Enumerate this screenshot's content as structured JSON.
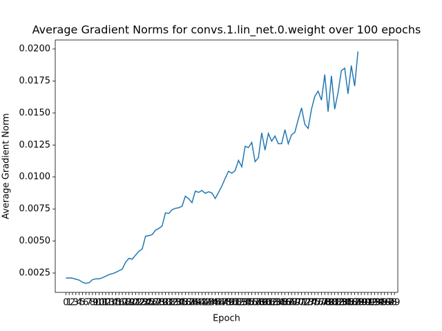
{
  "chart_data": {
    "type": "line",
    "title": "Average Gradient Norms for convs.1.lin_net.0.weight over 100 epochs",
    "x_label": "Epoch",
    "y_label": "Average Gradient Norm",
    "x": [
      0,
      1,
      2,
      3,
      4,
      5,
      6,
      7,
      8,
      9,
      10,
      11,
      12,
      13,
      14,
      15,
      16,
      17,
      18,
      19,
      20,
      21,
      22,
      23,
      24,
      25,
      26,
      27,
      28,
      29,
      30,
      31,
      32,
      33,
      34,
      35,
      36,
      37,
      38,
      39,
      40,
      41,
      42,
      43,
      44,
      45,
      46,
      47,
      48,
      49,
      50,
      51,
      52,
      53,
      54,
      55,
      56,
      57,
      58,
      59,
      60,
      61,
      62,
      63,
      64,
      65,
      66,
      67,
      68,
      69,
      70,
      71,
      72,
      73,
      74,
      75,
      76,
      77,
      78,
      79,
      80,
      81,
      82,
      83,
      84,
      85,
      86,
      87,
      88
    ],
    "series": [
      {
        "name": "Average Gradient Norm",
        "color": "#1f77b4",
        "values": [
          0.0021,
          0.00212,
          0.0021,
          0.00202,
          0.00195,
          0.00178,
          0.0017,
          0.00175,
          0.00198,
          0.00205,
          0.00205,
          0.00213,
          0.00225,
          0.00238,
          0.00245,
          0.00255,
          0.00268,
          0.00282,
          0.00335,
          0.00365,
          0.00358,
          0.0039,
          0.0042,
          0.00438,
          0.00538,
          0.00542,
          0.0055,
          0.00585,
          0.00598,
          0.00618,
          0.0072,
          0.00715,
          0.00745,
          0.00755,
          0.0076,
          0.00772,
          0.0085,
          0.0083,
          0.008,
          0.0089,
          0.0088,
          0.00895,
          0.00872,
          0.00885,
          0.00875,
          0.00832,
          0.0088,
          0.0093,
          0.0099,
          0.01045,
          0.0103,
          0.0105,
          0.0113,
          0.0108,
          0.0124,
          0.0123,
          0.0127,
          0.0112,
          0.0115,
          0.01345,
          0.0121,
          0.0134,
          0.0128,
          0.0132,
          0.0126,
          0.0126,
          0.0137,
          0.0126,
          0.0133,
          0.0135,
          0.0145,
          0.0154,
          0.0141,
          0.0138,
          0.0153,
          0.0163,
          0.0167,
          0.016,
          0.018,
          0.0151,
          0.0179,
          0.0153,
          0.0166,
          0.0183,
          0.0185,
          0.0165,
          0.0187,
          0.0171,
          0.0198
        ]
      }
    ],
    "xlim": [
      -3.2,
      100
    ],
    "xticks": [
      0,
      1,
      2,
      3,
      4,
      5,
      6,
      7,
      8,
      9,
      10,
      11,
      12,
      13,
      14,
      15,
      16,
      17,
      18,
      19,
      20,
      21,
      22,
      23,
      24,
      25,
      26,
      27,
      28,
      29,
      30,
      31,
      32,
      33,
      34,
      35,
      36,
      37,
      38,
      39,
      40,
      41,
      42,
      43,
      44,
      45,
      46,
      47,
      48,
      49,
      50,
      51,
      52,
      53,
      54,
      55,
      56,
      57,
      58,
      59,
      60,
      61,
      62,
      63,
      64,
      65,
      66,
      67,
      68,
      69,
      70,
      71,
      72,
      73,
      74,
      75,
      76,
      77,
      78,
      79,
      80,
      81,
      82,
      83,
      84,
      85,
      86,
      87,
      88,
      89,
      90,
      91,
      92,
      93,
      94,
      95,
      96,
      97,
      98,
      99
    ],
    "ylim": [
      0.00099,
      0.0207
    ],
    "yticks": [
      0.0025,
      {
        "value": 0.005,
        "label": "0.0050"
      },
      0.0075,
      {
        "value": 0.01,
        "label": "0.0100"
      },
      0.0125,
      {
        "value": 0.015,
        "label": "0.0150"
      },
      0.0175,
      {
        "value": 0.02,
        "label": "0.0200"
      }
    ]
  }
}
